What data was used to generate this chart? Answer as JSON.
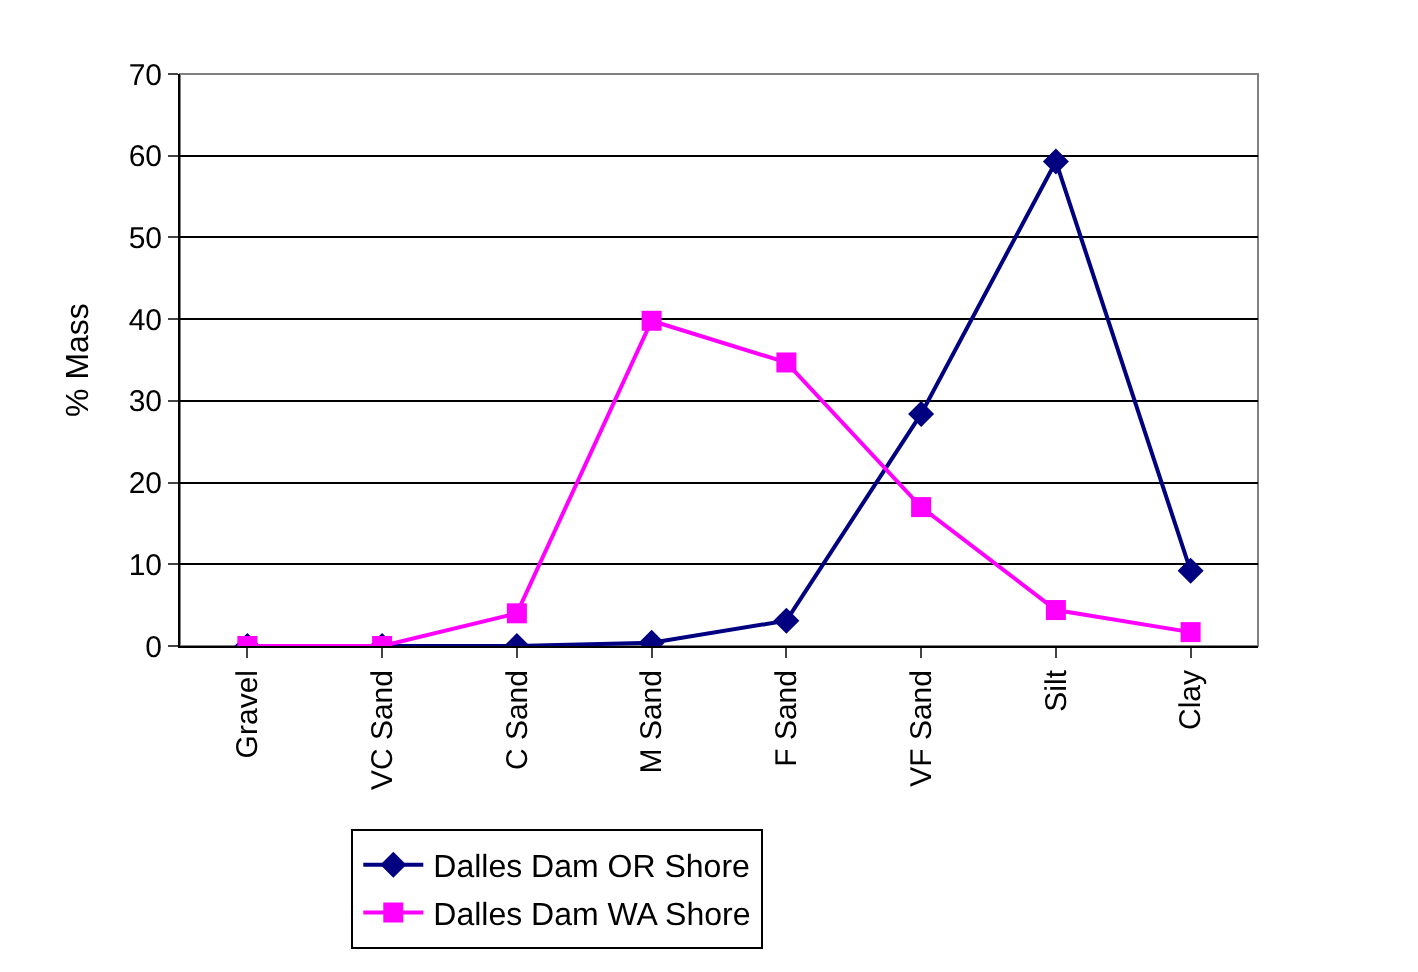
{
  "chart_data": {
    "type": "line",
    "ylabel": "% Mass",
    "categories": [
      "Gravel",
      "VC Sand",
      "C Sand",
      "M Sand",
      "F Sand",
      "VF Sand",
      "Silt",
      "Clay"
    ],
    "series": [
      {
        "name": "Dalles Dam OR Shore",
        "color": "#000080",
        "marker": "diamond",
        "values": [
          0,
          0,
          0,
          0.4,
          3.1,
          28.4,
          59.3,
          9.2
        ]
      },
      {
        "name": "Dalles Dam WA Shore",
        "color": "#ff00ff",
        "marker": "square",
        "values": [
          0,
          0,
          4.0,
          39.8,
          34.7,
          17.0,
          4.4,
          1.7
        ]
      }
    ],
    "ylim": [
      0,
      70
    ],
    "yticks": [
      0,
      10,
      20,
      30,
      40,
      50,
      60,
      70
    ],
    "grid": "y",
    "legend": "bottom",
    "line_style": "solid"
  }
}
